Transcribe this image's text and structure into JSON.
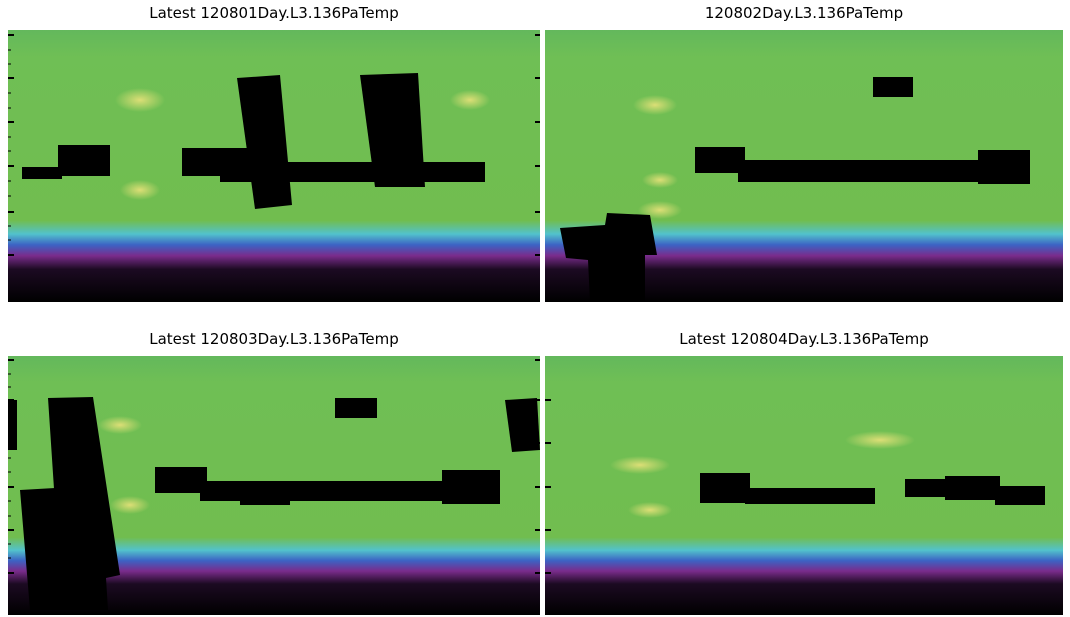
{
  "panels": [
    {
      "title": "Latest 120801Day.L3.136PaTemp"
    },
    {
      "title": "120802Day.L3.136PaTemp"
    },
    {
      "title": "Latest 120803Day.L3.136PaTemp"
    },
    {
      "title": "Latest 120804Day.L3.136PaTemp"
    }
  ]
}
